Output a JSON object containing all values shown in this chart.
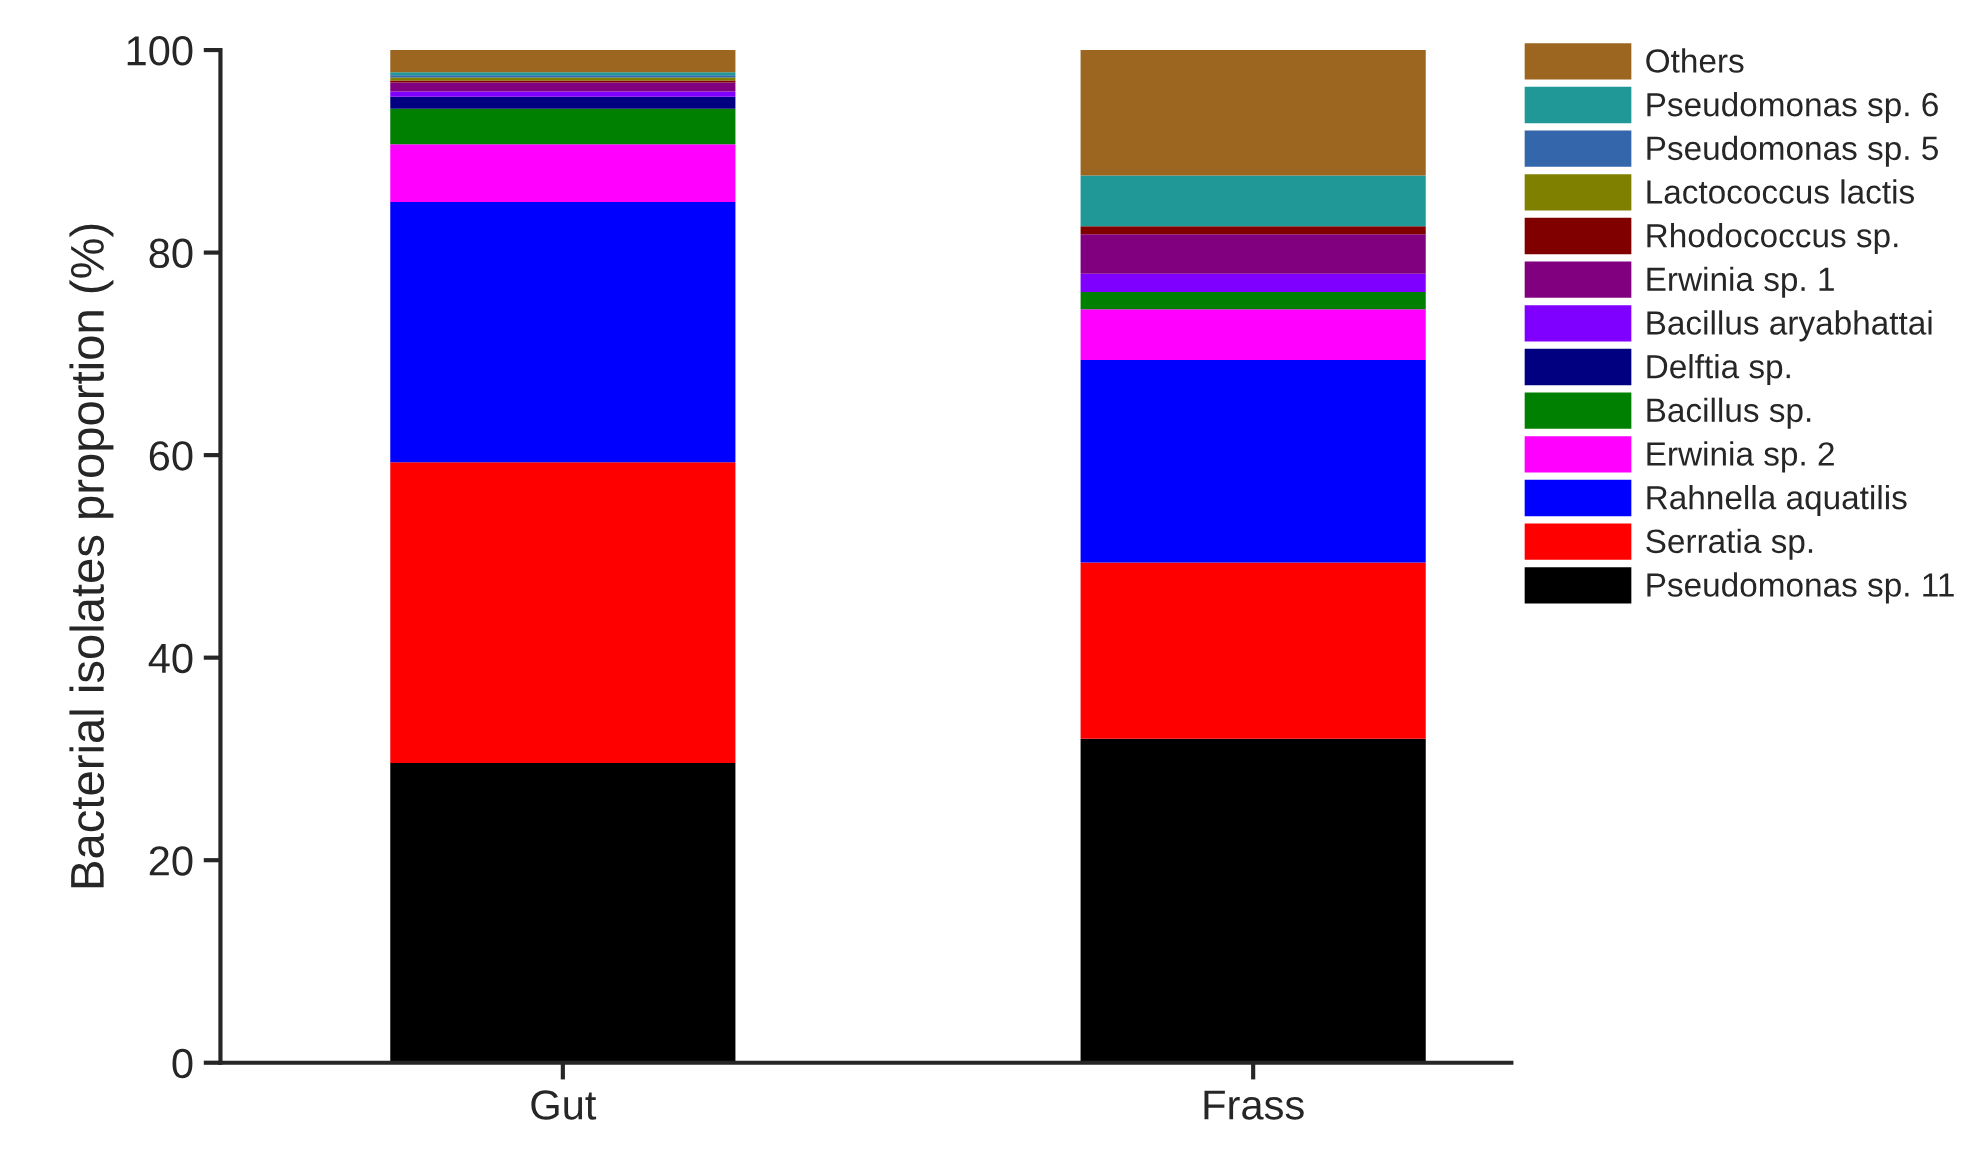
{
  "chart_data": {
    "type": "bar",
    "stacked": true,
    "ylabel": "Bacterial isolates proportion (%)",
    "categories": [
      "Gut",
      "Frass"
    ],
    "ylim": [
      0,
      100
    ],
    "yticks": [
      0,
      20,
      40,
      60,
      80,
      100
    ],
    "grid": false,
    "legend": "right",
    "series": [
      {
        "name": "Pseudomonas sp. 11",
        "color": "#000000",
        "values": [
          29.6,
          32.0
        ]
      },
      {
        "name": "Serratia sp.",
        "color": "#ff0000",
        "values": [
          29.7,
          17.4
        ]
      },
      {
        "name": "Rahnella aquatilis",
        "color": "#0000ff",
        "values": [
          25.7,
          20.0
        ]
      },
      {
        "name": "Erwinia sp. 2",
        "color": "#ff00ff",
        "values": [
          5.7,
          5.0
        ]
      },
      {
        "name": "Bacillus sp.",
        "color": "#008000",
        "values": [
          3.5,
          1.7
        ]
      },
      {
        "name": "Delftia sp.",
        "color": "#000080",
        "values": [
          1.2,
          0
        ]
      },
      {
        "name": "Bacillus aryabhattai",
        "color": "#8000ff",
        "values": [
          0.5,
          1.8
        ]
      },
      {
        "name": "Erwinia sp. 1",
        "color": "#800080",
        "values": [
          0.9,
          3.9
        ]
      },
      {
        "name": "Rhodococcus sp.",
        "color": "#800000",
        "values": [
          0.2,
          0.8
        ]
      },
      {
        "name": "Lactococcus lactis",
        "color": "#808000",
        "values": [
          0.3,
          0
        ]
      },
      {
        "name": "Pseudomonas sp. 5",
        "color": "#3366aa",
        "values": [
          0.2,
          0
        ]
      },
      {
        "name": "Pseudomonas sp. 6",
        "color": "#209898",
        "values": [
          0.3,
          5.0
        ]
      },
      {
        "name": "Others",
        "color": "#9c6620",
        "values": [
          2.2,
          12.4
        ]
      }
    ]
  }
}
